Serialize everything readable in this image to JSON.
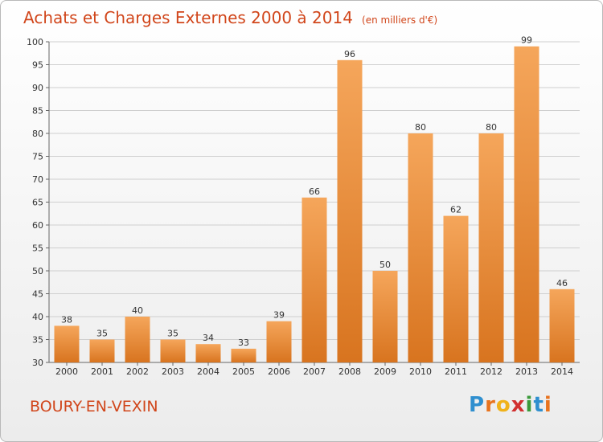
{
  "title": "Achats et Charges Externes 2000 à 2014",
  "unit_note": "(en milliers d'€)",
  "commune": "BOURY-EN-VEXIN",
  "logo": {
    "letters": [
      "P",
      "r",
      "o",
      "x",
      "i",
      "t",
      "i"
    ],
    "colors": [
      "#2f8fcf",
      "#e8731e",
      "#f0b21a",
      "#d12f2f",
      "#3a9a3a",
      "#2f8fcf",
      "#e8731e"
    ]
  },
  "colors": {
    "title": "#d1461b",
    "bar_top": "#f5a65b",
    "bar_bottom": "#d8741f",
    "grid": "#cfcfcf"
  },
  "chart_data": {
    "type": "bar",
    "categories": [
      "2000",
      "2001",
      "2002",
      "2003",
      "2004",
      "2005",
      "2006",
      "2007",
      "2008",
      "2009",
      "2010",
      "2011",
      "2012",
      "2013",
      "2014"
    ],
    "values": [
      38,
      35,
      40,
      35,
      34,
      33,
      39,
      66,
      96,
      50,
      80,
      62,
      80,
      99,
      46
    ],
    "yticks": [
      30,
      35,
      40,
      45,
      50,
      55,
      60,
      65,
      70,
      75,
      80,
      85,
      90,
      95,
      100
    ],
    "ylim": [
      30,
      100
    ],
    "grid": true
  }
}
